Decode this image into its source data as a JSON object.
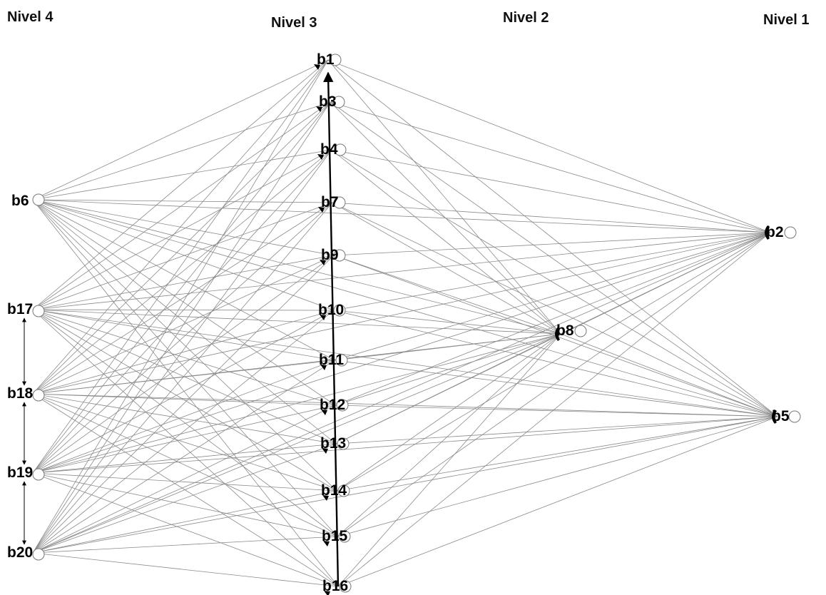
{
  "levels": [
    {
      "id": "n4",
      "label": "Nivel 4"
    },
    {
      "id": "n3",
      "label": "Nivel 3"
    },
    {
      "id": "n2",
      "label": "Nivel 2"
    },
    {
      "id": "n1",
      "label": "Nivel 1"
    }
  ],
  "nodes": [
    {
      "id": "b6",
      "label": "b6",
      "level": 4
    },
    {
      "id": "b17",
      "label": "b17",
      "level": 4
    },
    {
      "id": "b18",
      "label": "b18",
      "level": 4
    },
    {
      "id": "b19",
      "label": "b19",
      "level": 4
    },
    {
      "id": "b20",
      "label": "b20",
      "level": 4
    },
    {
      "id": "b1",
      "label": "b1",
      "level": 3
    },
    {
      "id": "b3",
      "label": "b3",
      "level": 3
    },
    {
      "id": "b4",
      "label": "b4",
      "level": 3
    },
    {
      "id": "b7",
      "label": "b7",
      "level": 3
    },
    {
      "id": "b9",
      "label": "b9",
      "level": 3
    },
    {
      "id": "b10",
      "label": "b10",
      "level": 3
    },
    {
      "id": "b11",
      "label": "b11",
      "level": 3
    },
    {
      "id": "b12",
      "label": "b12",
      "level": 3
    },
    {
      "id": "b13",
      "label": "b13",
      "level": 3
    },
    {
      "id": "b14",
      "label": "b14",
      "level": 3
    },
    {
      "id": "b15",
      "label": "b15",
      "level": 3
    },
    {
      "id": "b16",
      "label": "b16",
      "level": 3
    },
    {
      "id": "b8",
      "label": "b8",
      "level": 2
    },
    {
      "id": "b2",
      "label": "b2",
      "level": 1
    },
    {
      "id": "b5",
      "label": "b5",
      "level": 1
    }
  ],
  "edge_groups": [
    {
      "from": [
        "b6",
        "b17",
        "b18",
        "b19",
        "b20"
      ],
      "to": [
        "b1",
        "b3",
        "b4",
        "b7",
        "b9",
        "b10",
        "b11",
        "b12",
        "b13",
        "b14",
        "b15",
        "b16",
        "b8",
        "b2",
        "b5"
      ]
    },
    {
      "from": [
        "b1",
        "b3",
        "b4",
        "b7",
        "b9",
        "b10",
        "b11",
        "b12",
        "b13",
        "b14",
        "b15",
        "b16"
      ],
      "to": [
        "b8",
        "b2",
        "b5"
      ]
    },
    {
      "from": [
        "b8"
      ],
      "to": [
        "b2",
        "b5"
      ]
    }
  ],
  "chain_edges": [
    [
      "b16",
      "b1"
    ],
    [
      "b17",
      "b18"
    ],
    [
      "b18",
      "b19"
    ],
    [
      "b19",
      "b20"
    ]
  ]
}
